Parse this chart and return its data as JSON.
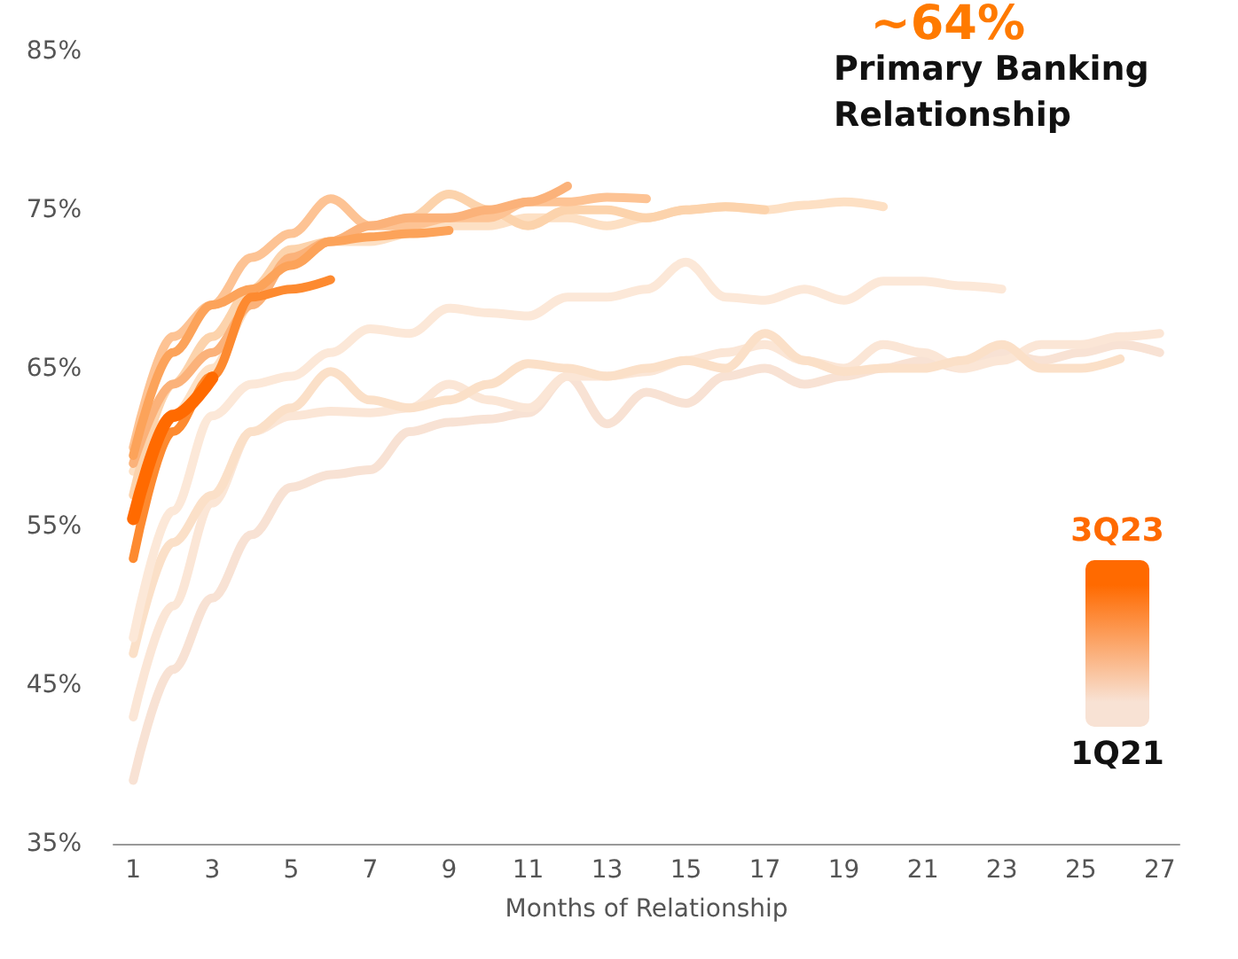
{
  "chart_data": {
    "type": "line",
    "title": "Primary Banking Relationship",
    "annotations": [
      "~64%"
    ],
    "xlabel": "Months of Relationship",
    "x": [
      1,
      2,
      3,
      4,
      5,
      6,
      7,
      8,
      9,
      10,
      11,
      12,
      13,
      14,
      15,
      16,
      17,
      18,
      19,
      20,
      21,
      22,
      23,
      24,
      25,
      26,
      27
    ],
    "xlim": [
      0.5,
      27.5
    ],
    "xticks": [
      1,
      3,
      5,
      7,
      9,
      11,
      13,
      15,
      17,
      19,
      21,
      23,
      25,
      27
    ],
    "ylim": [
      35,
      85
    ],
    "yticks": [
      {
        "value": 35,
        "label": "35%"
      },
      {
        "value": 45,
        "label": "45%"
      },
      {
        "value": 55,
        "label": "55%"
      },
      {
        "value": 65,
        "label": "65%"
      },
      {
        "value": 75,
        "label": "75%"
      },
      {
        "value": 85,
        "label": "85%"
      }
    ],
    "legend": "right",
    "marker": "none",
    "line_style": "solid",
    "series": [
      {
        "name": "1Q21",
        "color": "#f8e2d4",
        "values": [
          39,
          46,
          50.5,
          54.5,
          57.5,
          58.3,
          58.6,
          61,
          61.6,
          61.8,
          62.2,
          64.5,
          61.5,
          63.5,
          62.8,
          64.5,
          65,
          64,
          64.5,
          65,
          65.5,
          65,
          66,
          65.5,
          66,
          66.5,
          66
        ]
      },
      {
        "color": "#fbe6d6",
        "values": [
          43,
          50,
          56.5,
          61,
          62,
          62.3,
          62.2,
          62.5,
          64,
          63,
          62.5,
          64.5,
          64.5,
          64.8,
          65.5,
          66,
          66.5,
          65.5,
          65,
          66.5,
          66,
          65,
          65.5,
          66.5,
          66.5,
          67,
          67.2
        ]
      },
      {
        "color": "#fbe0c8",
        "values": [
          47,
          54,
          57,
          61,
          62.5,
          64.8,
          63,
          62.5,
          63,
          64,
          65.3,
          65,
          64.5,
          65,
          65.5,
          65,
          67.2,
          65.5,
          64.8,
          65,
          65,
          65.5,
          66.5,
          65,
          65,
          65.6,
          null
        ]
      },
      {
        "color": "#fce8d8",
        "values": [
          48,
          56,
          62,
          64,
          64.5,
          66,
          67.5,
          67.2,
          68.8,
          68.5,
          68.3,
          69.5,
          69.5,
          70,
          71.7,
          69.5,
          69.3,
          70,
          69.3,
          70.5,
          70.5,
          70.2,
          70,
          null,
          null,
          null,
          null
        ]
      },
      {
        "color": "#fde0c4",
        "values": [
          58.5,
          62,
          65,
          69,
          72,
          73,
          73,
          73.5,
          74,
          74,
          74.5,
          74.5,
          74,
          74.5,
          75,
          75.2,
          75,
          75.3,
          75.5,
          75.2,
          null,
          null,
          null,
          null,
          null,
          null,
          null
        ]
      },
      {
        "color": "#fcd3ac",
        "values": [
          57,
          64,
          67,
          70,
          72.5,
          73,
          74,
          74.5,
          76,
          75,
          74,
          75,
          75,
          74.5,
          75,
          75.2,
          75,
          null,
          null,
          null,
          null,
          null,
          null,
          null,
          null,
          null,
          null
        ]
      },
      {
        "color": "#fdc394",
        "values": [
          60,
          67,
          69,
          72,
          73.5,
          75.7,
          74,
          74,
          74.5,
          74.5,
          75.5,
          75.5,
          75.8,
          75.7,
          null,
          null,
          null,
          null,
          null,
          null,
          null,
          null,
          null,
          null,
          null,
          null,
          null
        ]
      },
      {
        "color": "#fbb27a",
        "values": [
          59,
          64,
          66,
          69,
          72,
          73,
          74,
          74.5,
          74.5,
          75,
          75.5,
          76.5,
          null,
          null,
          null,
          null,
          null,
          null,
          null,
          null,
          null,
          null,
          null,
          null,
          null,
          null,
          null
        ]
      },
      {
        "color": "#fca35a",
        "values": [
          59.5,
          66,
          69,
          70,
          71.5,
          73,
          73.3,
          73.5,
          73.7,
          null,
          null,
          null,
          null,
          null,
          null,
          null,
          null,
          null,
          null,
          null,
          null,
          null,
          null,
          null,
          null,
          null,
          null
        ]
      },
      {
        "color": "#fd8a30",
        "values": [
          53,
          61,
          64.5,
          69.5,
          70,
          70.6,
          null,
          null,
          null,
          null,
          null,
          null,
          null,
          null,
          null,
          null,
          null,
          null,
          null,
          null,
          null,
          null,
          null,
          null,
          null,
          null,
          null
        ]
      },
      {
        "name": "3Q23",
        "color": "#ff6a00",
        "values": [
          55.5,
          62,
          64.4,
          null,
          null,
          null,
          null,
          null,
          null,
          null,
          null,
          null,
          null,
          null,
          null,
          null,
          null,
          null,
          null,
          null,
          null,
          null,
          null,
          null,
          null,
          null,
          null
        ]
      }
    ]
  }
}
